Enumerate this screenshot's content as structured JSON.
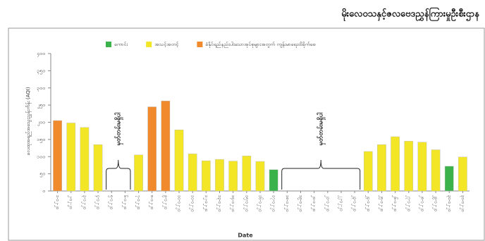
{
  "chart_data": {
    "type": "bar",
    "title": "မိုးလေဝသနှင့်ဇလဗေဒညွှန်ကြားမှုဦးစီးဌာန",
    "y_label": "လေထုအရည်အသွေးညွှန်းကိန်း (AQI)",
    "x_label": "Date",
    "annotations": [
      "မှတ်တမ်းမရှိပါ",
      "မှတ်တမ်းမရှိပါ"
    ],
    "categories": [
      "၁-၁၂-၂၀",
      "၂-၁၂-၂၀",
      "၃-၁၂-၂၀",
      "၄-၁၂-၂၀",
      "၅-၁၂-၂၀",
      "၆-၁၂-၂၀",
      "၇-၁၂-၂၀",
      "၈-၁၂-၂၀",
      "၉-၁၂-၂၀",
      "၁၀-၁၂-၂၀",
      "၁၁-၁၂-၂၀",
      "၁၂-၁၂-၂၀",
      "၁၃-၁၂-၂၀",
      "၁၄-၁၂-၂၀",
      "၁၅-၁၂-၂၀",
      "၁၆-၁၂-၂၀",
      "၁၇-၁၂-၂၀",
      "၁၈-၁၂-၂၀",
      "၁၉-၁၂-၂၀",
      "၂၀-၁၂-၂၀",
      "၂၁-၁၂-၂၀",
      "၂၂-၁၂-၂၀",
      "၂၃-၁၂-၂၀",
      "၂၄-၁၂-၂၀",
      "၂၅-၁၂-၂၀",
      "၂၆-၁၂-၂၀",
      "၂၇-၁၂-၂၀",
      "၂၈-၁၂-၂၀",
      "၂၉-၁၂-၂၀",
      "၃၀-၁၂-၂၀",
      "၃၁-၁၂-၂၀"
    ],
    "series": [
      {
        "name": "ကောင်း",
        "color": "#3cb34a",
        "values": [
          null,
          null,
          null,
          null,
          null,
          null,
          null,
          null,
          null,
          null,
          null,
          null,
          null,
          null,
          null,
          null,
          62,
          null,
          null,
          null,
          null,
          null,
          null,
          null,
          null,
          null,
          null,
          null,
          null,
          72,
          null
        ]
      },
      {
        "name": "အသင့်အတင့်",
        "color": "#f2e626",
        "values": [
          null,
          198,
          185,
          135,
          null,
          null,
          105,
          null,
          null,
          178,
          108,
          88,
          92,
          87,
          102,
          86,
          null,
          null,
          null,
          null,
          null,
          null,
          null,
          115,
          135,
          158,
          145,
          142,
          120,
          null,
          99
        ]
      },
      {
        "name": "ခံနိုင်ရည်နည်းပါးသောအုပ်စုများအတွက် ကျန်းမာရေးထိခိုက်စေ",
        "color": "#f08a2c",
        "values": [
          205,
          null,
          null,
          null,
          null,
          null,
          null,
          245,
          262,
          null,
          null,
          null,
          null,
          null,
          null,
          null,
          null,
          null,
          null,
          null,
          null,
          null,
          null,
          null,
          null,
          null,
          null,
          null,
          null,
          null,
          null
        ]
      }
    ],
    "ylim": [
      0,
      400
    ],
    "yticks": [
      {
        "value": 0,
        "label": "၀"
      },
      {
        "value": 50,
        "label": "၅၀"
      },
      {
        "value": 100,
        "label": "၁၀၀"
      },
      {
        "value": 150,
        "label": "၁၅၀"
      },
      {
        "value": 200,
        "label": "၂၀၀"
      },
      {
        "value": 250,
        "label": "၂၅၀"
      },
      {
        "value": 300,
        "label": "၃၀၀"
      },
      {
        "value": 350,
        "label": "၃၅၀"
      },
      {
        "value": 400,
        "label": "၄၀၀"
      }
    ],
    "grid": false
  }
}
